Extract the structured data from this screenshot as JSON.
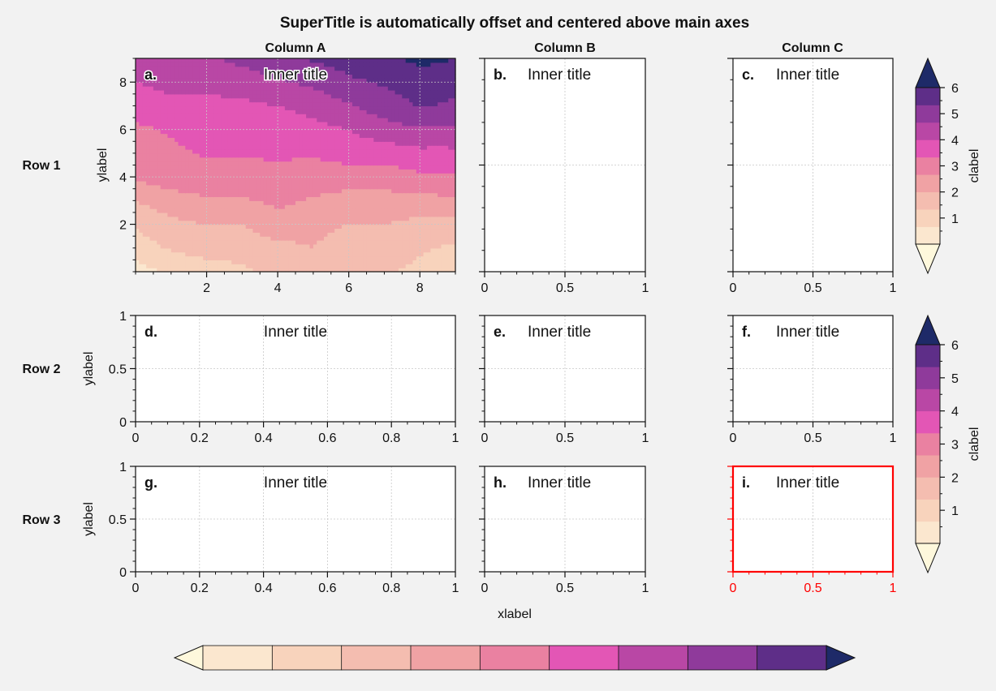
{
  "figure": {
    "suptitle": "SuperTitle is automatically offset and centered above main axes",
    "column_titles": [
      "Column A",
      "Column B",
      "Column C"
    ],
    "row_labels": [
      "Row 1",
      "Row 2",
      "Row 3"
    ],
    "inner_title": "Inner title",
    "xlabel": "xlabel",
    "ylabel": "ylabel",
    "colorbar_label": "clabel",
    "highlight_color": "#ff0000"
  },
  "chart_data": [
    {
      "panel": "a.",
      "type": "heatmap",
      "title": "Inner title",
      "x": [
        0,
        1,
        2,
        3,
        4,
        5,
        6,
        7,
        8,
        9
      ],
      "y": [
        0,
        1,
        2,
        3,
        4,
        5,
        6,
        7,
        8,
        9
      ],
      "xlim": [
        0,
        9
      ],
      "ylim": [
        0,
        9
      ],
      "xticks": [
        2,
        4,
        6,
        8
      ],
      "yticks": [
        2,
        4,
        6,
        8
      ],
      "ylabel": "ylabel",
      "z_approx": [
        [
          0.4,
          0.8,
          1.0,
          1.2,
          1.6,
          2.0,
          1.5,
          1.4,
          1.2,
          1.0
        ],
        [
          1.0,
          1.4,
          1.6,
          1.6,
          1.8,
          2.0,
          1.6,
          1.6,
          1.4,
          1.2
        ],
        [
          1.4,
          1.8,
          2.0,
          2.0,
          2.4,
          2.2,
          2.0,
          2.0,
          1.8,
          1.8
        ],
        [
          2.0,
          2.4,
          2.6,
          2.6,
          2.8,
          2.6,
          2.4,
          2.4,
          2.4,
          2.6
        ],
        [
          2.8,
          3.0,
          3.0,
          3.0,
          3.2,
          3.0,
          3.0,
          3.0,
          3.2,
          3.2
        ],
        [
          3.0,
          3.2,
          3.4,
          3.4,
          3.4,
          3.4,
          3.6,
          3.6,
          3.8,
          3.8
        ],
        [
          3.2,
          3.4,
          3.6,
          3.6,
          3.6,
          3.8,
          4.0,
          4.4,
          4.6,
          4.6
        ],
        [
          3.6,
          3.8,
          3.8,
          3.8,
          4.0,
          4.2,
          4.6,
          5.0,
          5.4,
          5.2
        ],
        [
          4.0,
          4.2,
          4.2,
          4.4,
          4.6,
          4.8,
          5.2,
          5.4,
          5.6,
          5.6
        ],
        [
          4.4,
          4.6,
          4.6,
          4.8,
          5.0,
          5.4,
          5.6,
          5.8,
          6.2,
          6.0
        ]
      ]
    },
    {
      "panel": "b.",
      "type": "line",
      "title": "Inner title",
      "xlim": [
        0,
        1
      ],
      "ylim": [
        0,
        1
      ],
      "xticks": [
        "0",
        "0.5",
        "1"
      ],
      "yticks": []
    },
    {
      "panel": "c.",
      "type": "line",
      "title": "Inner title",
      "xlim": [
        0,
        1
      ],
      "ylim": [
        0,
        1
      ],
      "xticks": [
        "0",
        "0.5",
        "1"
      ],
      "yticks": []
    },
    {
      "panel": "d.",
      "type": "line",
      "title": "Inner title",
      "xlim": [
        0,
        1
      ],
      "ylim": [
        0,
        1
      ],
      "xticks": [
        "0",
        "0.2",
        "0.4",
        "0.6",
        "0.8",
        "1"
      ],
      "yticks": [
        "0",
        "0.5",
        "1"
      ],
      "ylabel": "ylabel"
    },
    {
      "panel": "e.",
      "type": "line",
      "title": "Inner title",
      "xlim": [
        0,
        1
      ],
      "ylim": [
        0,
        1
      ],
      "xticks": [
        "0",
        "0.5",
        "1"
      ],
      "yticks": []
    },
    {
      "panel": "f.",
      "type": "line",
      "title": "Inner title",
      "xlim": [
        0,
        1
      ],
      "ylim": [
        0,
        1
      ],
      "xticks": [
        "0",
        "0.5",
        "1"
      ],
      "yticks": []
    },
    {
      "panel": "g.",
      "type": "line",
      "title": "Inner title",
      "xlim": [
        0,
        1
      ],
      "ylim": [
        0,
        1
      ],
      "xticks": [
        "0",
        "0.2",
        "0.4",
        "0.6",
        "0.8",
        "1"
      ],
      "yticks": [
        "0",
        "0.5",
        "1"
      ],
      "ylabel": "ylabel"
    },
    {
      "panel": "h.",
      "type": "line",
      "title": "Inner title",
      "xlim": [
        0,
        1
      ],
      "ylim": [
        0,
        1
      ],
      "xticks": [
        "0",
        "0.5",
        "1"
      ],
      "yticks": [],
      "xlabel": "xlabel"
    },
    {
      "panel": "i.",
      "type": "line",
      "title": "Inner title",
      "xlim": [
        0,
        1
      ],
      "ylim": [
        0,
        1
      ],
      "xticks": [
        "0",
        "0.5",
        "1"
      ],
      "yticks": [],
      "highlight": true
    }
  ],
  "colorbars": {
    "levels": [
      0,
      0.67,
      1.33,
      2,
      2.67,
      3.33,
      4,
      4.67,
      5.33,
      6
    ],
    "ticks": [
      "1",
      "2",
      "3",
      "4",
      "5",
      "6"
    ],
    "label": "clabel",
    "extend": "both",
    "colors": [
      "#fef8dc",
      "#fbe7cf",
      "#f8d3bc",
      "#f4bdb0",
      "#f0a2a4",
      "#ea81a1",
      "#e356b5",
      "#b947a5",
      "#8f3a9b",
      "#5e2e88",
      "#1e2a68"
    ]
  }
}
